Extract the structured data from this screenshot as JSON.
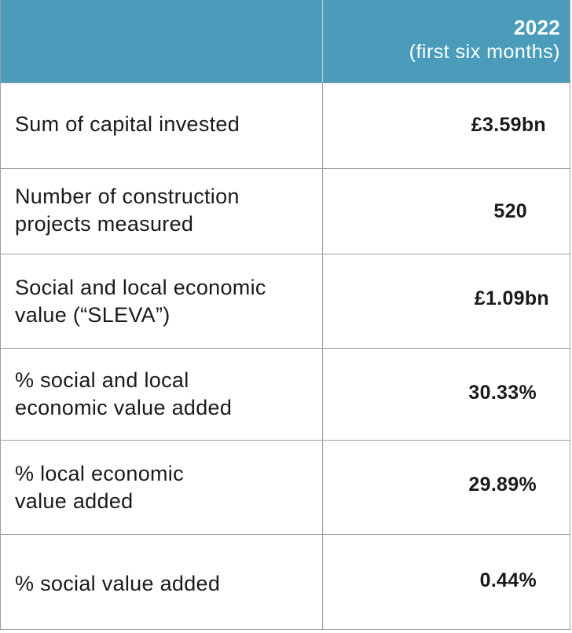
{
  "header": {
    "year": "2022",
    "period": "(first six months)"
  },
  "rows": [
    {
      "label": "Sum of capital invested",
      "value": "£3.59bn"
    },
    {
      "label": "Number of construction projects measured",
      "value": "520"
    },
    {
      "label": "Social and local economic value (“SLEVA”)",
      "value": "£1.09bn"
    },
    {
      "label": "% social and local economic value added",
      "value": "30.33%"
    },
    {
      "label": "% local economic value added",
      "value": "29.89%"
    },
    {
      "label": "% social value added",
      "value": "0.44%"
    }
  ],
  "colors": {
    "header_bg": "#4a9cba",
    "border": "#9aa0a3",
    "header_text": "#ffffff"
  }
}
